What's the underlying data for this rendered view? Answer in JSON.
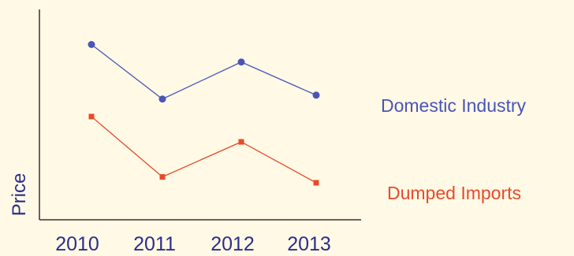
{
  "chart_data": {
    "type": "line",
    "categories": [
      "2010",
      "2011",
      "2012",
      "2013"
    ],
    "ylabel": "Price",
    "xlabel": "",
    "grid": false,
    "legend_position": "right",
    "series": [
      {
        "name": "Domestic Industry",
        "color": "#4A55B6",
        "values": [
          9.0,
          6.2,
          8.1,
          6.4
        ]
      },
      {
        "name": "Dumped Imports",
        "color": "#E84A2A",
        "values": [
          5.3,
          2.2,
          4.0,
          1.9
        ]
      }
    ],
    "ylim": [
      0,
      10.8
    ]
  },
  "colors": {
    "background": "#FFF9E6",
    "axis": "#333333",
    "text": "#2a2f8a"
  }
}
